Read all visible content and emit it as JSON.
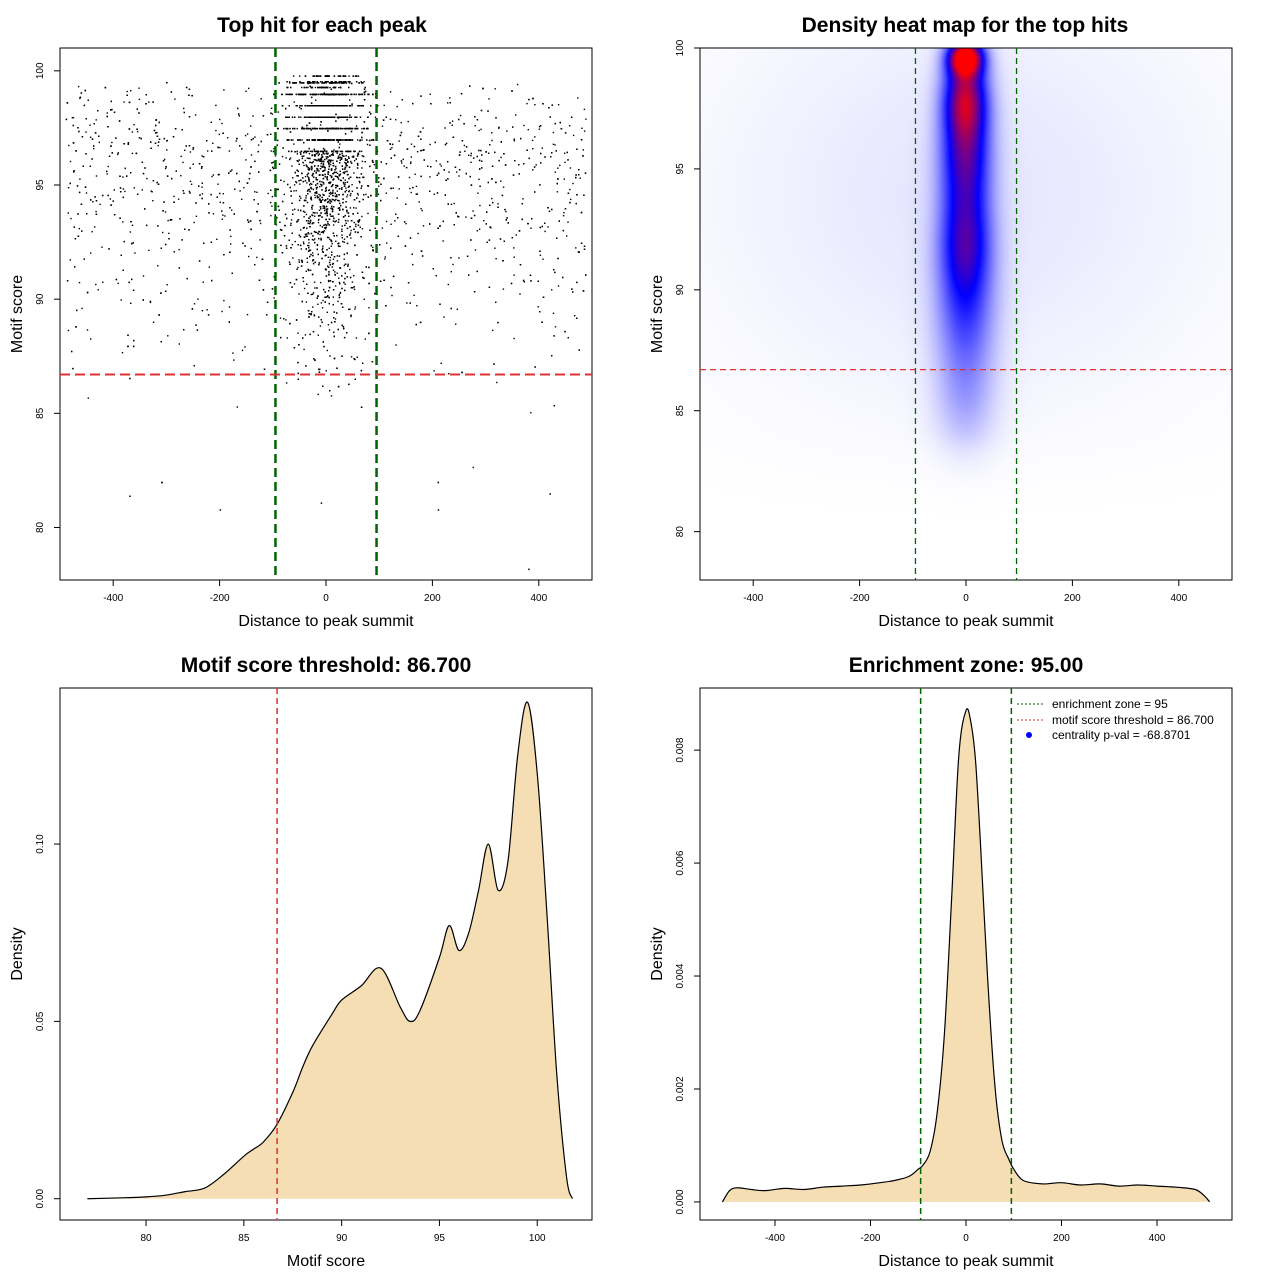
{
  "chart_data": [
    {
      "type": "scatter",
      "title": "Top hit for each peak",
      "xlabel": "Distance to peak summit",
      "ylabel": "Motif score",
      "xlim": [
        -500,
        500
      ],
      "ylim": [
        77.7,
        101.0
      ],
      "xticks": [
        -400,
        -200,
        0,
        200,
        400
      ],
      "yticks": [
        80,
        85,
        90,
        95,
        100
      ],
      "vlines": [
        -95,
        95
      ],
      "hline": 86.7,
      "point_color": "#000000",
      "vline_color": "#006400",
      "hline_color": "#e03030",
      "distribution": {
        "central_sd": 35,
        "central_fraction": 0.6,
        "score_mode": 100,
        "score_tail_min": 78.2,
        "approx_points": 5000,
        "outlier_points": [
          [
            380,
            78.2
          ],
          [
            -200,
            80.8
          ],
          [
            -370,
            81.4
          ],
          [
            420,
            81.5
          ],
          [
            -10,
            81.1
          ],
          [
            210,
            80.8
          ]
        ]
      }
    },
    {
      "type": "heatmap",
      "title": "Density heat map for the top hits",
      "xlabel": "Distance to peak summit",
      "ylabel": "Motif score",
      "xlim": [
        -500,
        500
      ],
      "ylim": [
        78.0,
        100.0
      ],
      "xticks": [
        -400,
        -200,
        0,
        200,
        400
      ],
      "yticks": [
        80,
        85,
        90,
        95,
        100
      ],
      "vlines": [
        -95,
        95
      ],
      "hline": 86.7,
      "colors": [
        "#ffffff",
        "#0000ff",
        "#ff0000"
      ],
      "vline_color": "#006400",
      "hline_color": "#e03030",
      "hotspots": [
        {
          "x": 0,
          "y": 99.6,
          "sx": 22,
          "sy": 0.5,
          "w": 1.0
        },
        {
          "x": 0,
          "y": 98.0,
          "sx": 28,
          "sy": 1.2,
          "w": 0.7
        },
        {
          "x": 0,
          "y": 95.5,
          "sx": 32,
          "sy": 1.6,
          "w": 0.55
        },
        {
          "x": 0,
          "y": 92.0,
          "sx": 34,
          "sy": 1.6,
          "w": 0.5
        },
        {
          "x": 0,
          "y": 89.0,
          "sx": 38,
          "sy": 1.8,
          "w": 0.3
        },
        {
          "x": 0,
          "y": 85.5,
          "sx": 40,
          "sy": 1.6,
          "w": 0.14
        },
        {
          "x": 0,
          "y": 94.0,
          "sx": 320,
          "sy": 6.0,
          "w": 0.05
        }
      ]
    },
    {
      "type": "area",
      "title": "Motif score threshold: 86.700",
      "xlabel": "Motif score",
      "ylabel": "Density",
      "xlim": [
        75.6,
        102.8
      ],
      "ylim": [
        -0.006,
        0.144
      ],
      "xticks": [
        80,
        85,
        90,
        95,
        100
      ],
      "yticks": [
        0.0,
        0.05,
        0.1
      ],
      "ytick_labels": [
        "0.00",
        "0.05",
        "0.10"
      ],
      "vline": 86.7,
      "fill_color": "#f5deb3",
      "line_color": "#000000",
      "vline_color": "#e03030",
      "x": [
        77.0,
        79.0,
        80.0,
        81.0,
        82.0,
        83.0,
        84.0,
        85.0,
        85.5,
        86.0,
        86.7,
        87.5,
        88.0,
        88.5,
        89.5,
        90.0,
        91.0,
        92.0,
        93.0,
        93.5,
        94.0,
        95.0,
        95.5,
        96.0,
        96.5,
        97.0,
        97.5,
        98.0,
        98.5,
        99.0,
        99.5,
        100.0,
        100.5,
        101.0,
        101.5,
        101.8
      ],
      "y": [
        0.0,
        0.0003,
        0.0005,
        0.001,
        0.002,
        0.003,
        0.007,
        0.012,
        0.014,
        0.016,
        0.021,
        0.03,
        0.037,
        0.043,
        0.052,
        0.056,
        0.06,
        0.065,
        0.054,
        0.05,
        0.053,
        0.068,
        0.077,
        0.07,
        0.075,
        0.087,
        0.1,
        0.087,
        0.095,
        0.125,
        0.14,
        0.12,
        0.08,
        0.035,
        0.006,
        0.0
      ]
    },
    {
      "type": "area",
      "title": "Enrichment zone: 95.00",
      "xlabel": "Distance to peak summit",
      "ylabel": "Density",
      "xlim": [
        -557,
        557
      ],
      "ylim": [
        -0.00032,
        0.0091
      ],
      "xticks": [
        -400,
        -200,
        0,
        200,
        400
      ],
      "yticks": [
        0.0,
        0.002,
        0.004,
        0.006,
        0.008
      ],
      "ytick_labels": [
        "0.000",
        "0.002",
        "0.004",
        "0.006",
        "0.008"
      ],
      "vlines": [
        -95,
        95
      ],
      "fill_color": "#f5deb3",
      "line_color": "#000000",
      "vline_color": "#006400",
      "x": [
        -510,
        -495,
        -480,
        -450,
        -420,
        -380,
        -340,
        -300,
        -260,
        -220,
        -180,
        -150,
        -120,
        -100,
        -90,
        -75,
        -60,
        -45,
        -30,
        -15,
        0,
        10,
        20,
        30,
        45,
        60,
        75,
        90,
        100,
        120,
        160,
        200,
        240,
        280,
        320,
        360,
        400,
        440,
        480,
        500,
        510
      ],
      "y": [
        0.0,
        0.0002,
        0.00025,
        0.00022,
        0.0002,
        0.00024,
        0.00022,
        0.00026,
        0.00028,
        0.0003,
        0.00034,
        0.00038,
        0.00045,
        0.00058,
        0.00065,
        0.0009,
        0.0016,
        0.003,
        0.0054,
        0.0079,
        0.0087,
        0.0085,
        0.0078,
        0.0064,
        0.004,
        0.0021,
        0.0011,
        0.00075,
        0.00058,
        0.00038,
        0.00032,
        0.00034,
        0.0003,
        0.00032,
        0.00028,
        0.0003,
        0.00028,
        0.00026,
        0.00022,
        0.0001,
        0.0
      ],
      "legend": {
        "position": "top-right",
        "entries": [
          {
            "label": "enrichment zone = 95",
            "color": "#006400",
            "style": "dotted-line"
          },
          {
            "label": "motif score threshold = 86.700",
            "color": "#e03030",
            "style": "dotted-line"
          },
          {
            "label": "centrality p-val = -68.8701",
            "color": "#0000ff",
            "style": "point"
          }
        ]
      }
    }
  ]
}
